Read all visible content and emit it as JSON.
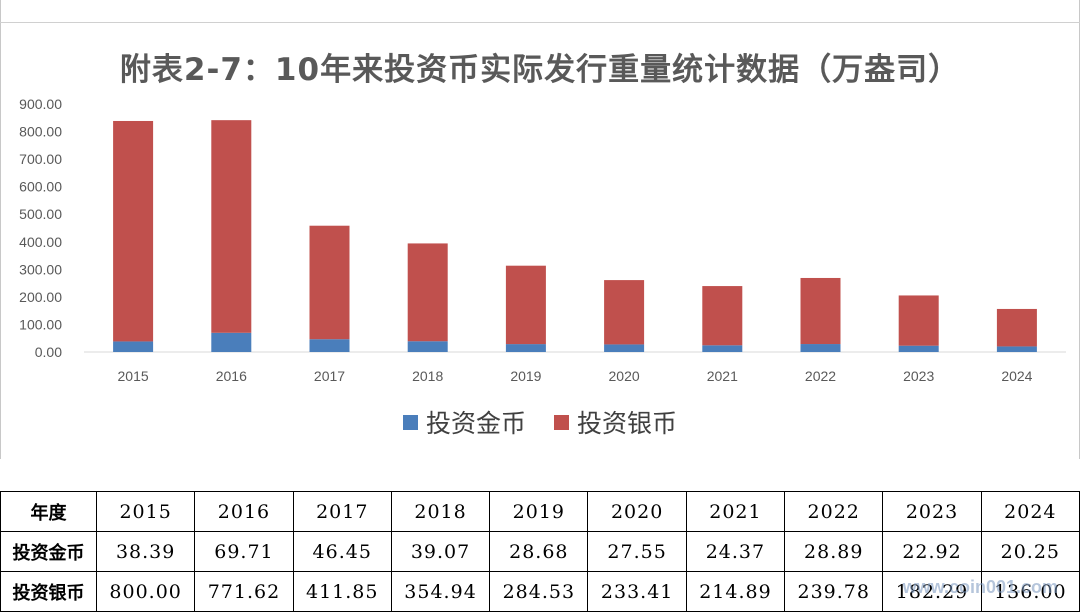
{
  "chart_data": {
    "type": "bar",
    "stacked": true,
    "title": "附表2-7：10年来投资币实际发行重量统计数据（万盎司）",
    "categories": [
      "2015",
      "2016",
      "2017",
      "2018",
      "2019",
      "2020",
      "2021",
      "2022",
      "2023",
      "2024"
    ],
    "series": [
      {
        "name": "投资金币",
        "color": "#4a7ebb",
        "values": [
          38.39,
          69.71,
          46.45,
          39.07,
          28.68,
          27.55,
          24.37,
          28.89,
          22.92,
          20.25
        ]
      },
      {
        "name": "投资银币",
        "color": "#c0504d",
        "values": [
          800.0,
          771.62,
          411.85,
          354.94,
          284.53,
          233.41,
          214.89,
          239.78,
          182.29,
          136.0
        ]
      }
    ],
    "ylim": [
      0,
      900
    ],
    "yticks": [
      "0.00",
      "100.00",
      "200.00",
      "300.00",
      "400.00",
      "500.00",
      "600.00",
      "700.00",
      "800.00",
      "900.00"
    ],
    "legend_position": "bottom",
    "grid": false
  },
  "table": {
    "header": [
      "年度",
      "2015",
      "2016",
      "2017",
      "2018",
      "2019",
      "2020",
      "2021",
      "2022",
      "2023",
      "2024"
    ],
    "rows": [
      [
        "投资金币",
        "38.39",
        "69.71",
        "46.45",
        "39.07",
        "28.68",
        "27.55",
        "24.37",
        "28.89",
        "22.92",
        "20.25"
      ],
      [
        "投资银币",
        "800.00",
        "771.62",
        "411.85",
        "354.94",
        "284.53",
        "233.41",
        "214.89",
        "239.78",
        "182.29",
        "136.00"
      ]
    ]
  },
  "watermark": "www.coin001.com"
}
